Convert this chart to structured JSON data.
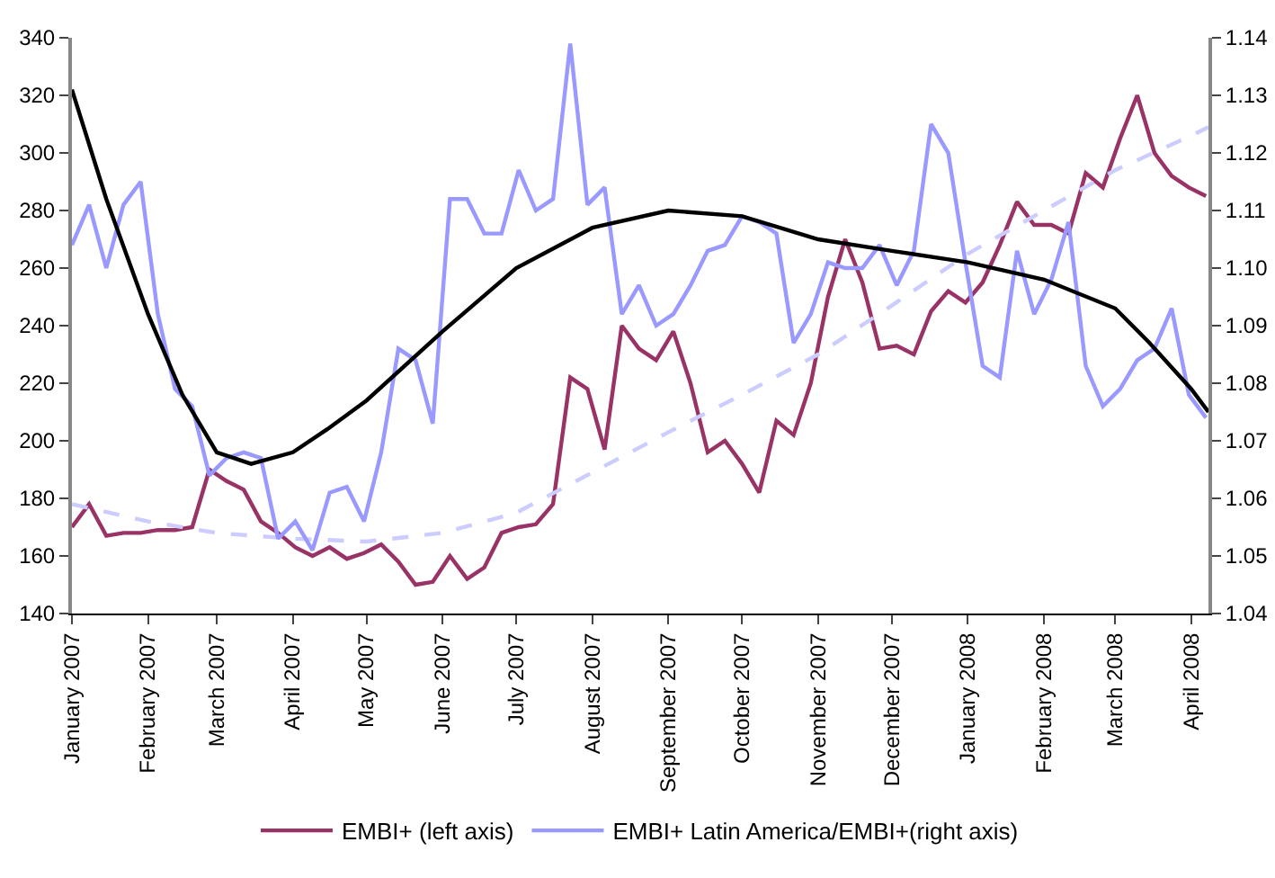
{
  "chart_data": {
    "type": "line",
    "x": [
      "2007-01-01",
      "2007-01-08",
      "2007-01-15",
      "2007-01-22",
      "2007-01-29",
      "2007-02-05",
      "2007-02-12",
      "2007-02-19",
      "2007-02-26",
      "2007-03-05",
      "2007-03-12",
      "2007-03-19",
      "2007-03-26",
      "2007-04-02",
      "2007-04-09",
      "2007-04-16",
      "2007-04-23",
      "2007-04-30",
      "2007-05-07",
      "2007-05-14",
      "2007-05-21",
      "2007-05-28",
      "2007-06-04",
      "2007-06-11",
      "2007-06-18",
      "2007-06-25",
      "2007-07-02",
      "2007-07-09",
      "2007-07-16",
      "2007-07-23",
      "2007-07-30",
      "2007-08-06",
      "2007-08-13",
      "2007-08-20",
      "2007-08-27",
      "2007-09-03",
      "2007-09-10",
      "2007-09-17",
      "2007-09-24",
      "2007-10-01",
      "2007-10-08",
      "2007-10-15",
      "2007-10-22",
      "2007-10-29",
      "2007-11-05",
      "2007-11-12",
      "2007-11-19",
      "2007-11-26",
      "2007-12-03",
      "2007-12-10",
      "2007-12-17",
      "2007-12-24",
      "2007-12-31",
      "2008-01-07",
      "2008-01-14",
      "2008-01-21",
      "2008-01-28",
      "2008-02-04",
      "2008-02-11",
      "2008-02-18",
      "2008-02-25",
      "2008-03-03",
      "2008-03-10",
      "2008-03-17",
      "2008-03-24",
      "2008-03-31",
      "2008-04-07"
    ],
    "series": [
      {
        "name": "EMBI+ (left axis)",
        "color": "#993366",
        "axis": "y",
        "values": [
          170,
          178,
          167,
          168,
          168,
          169,
          169,
          170,
          190,
          186,
          183,
          172,
          168,
          163,
          160,
          163,
          159,
          161,
          164,
          158,
          150,
          151,
          160,
          152,
          156,
          168,
          170,
          171,
          178,
          222,
          218,
          197,
          240,
          232,
          228,
          238,
          220,
          196,
          200,
          192,
          182,
          207,
          202,
          220,
          250,
          270,
          255,
          232,
          233,
          230,
          245,
          252,
          248,
          255,
          268,
          283,
          275,
          275,
          272,
          293,
          288,
          305,
          320,
          300,
          292,
          288,
          285
        ]
      },
      {
        "name": "EMBI+ Latin America/EMBI+(right axis)",
        "color": "#9999ff",
        "axis": "y2",
        "values": [
          1.104,
          1.111,
          1.1,
          1.111,
          1.115,
          1.092,
          1.079,
          1.076,
          1.064,
          1.067,
          1.068,
          1.067,
          1.053,
          1.056,
          1.051,
          1.061,
          1.062,
          1.056,
          1.068,
          1.086,
          1.084,
          1.073,
          1.112,
          1.112,
          1.106,
          1.106,
          1.117,
          1.11,
          1.112,
          1.139,
          1.111,
          1.114,
          1.092,
          1.097,
          1.09,
          1.092,
          1.097,
          1.103,
          1.104,
          1.109,
          1.108,
          1.106,
          1.087,
          1.092,
          1.101,
          1.1,
          1.1,
          1.104,
          1.097,
          1.103,
          1.125,
          1.12,
          1.101,
          1.083,
          1.081,
          1.103,
          1.092,
          1.098,
          1.108,
          1.083,
          1.076,
          1.079,
          1.084,
          1.086,
          1.093,
          1.078,
          1.074
        ]
      },
      {
        "type": "line",
        "color": "#000000",
        "axis": "y2",
        "x": [
          "2007-01-01",
          "2007-01-15",
          "2007-02-01",
          "2007-02-15",
          "2007-03-01",
          "2007-03-15",
          "2007-04-01",
          "2007-04-15",
          "2007-05-01",
          "2007-06-01",
          "2007-07-01",
          "2007-08-01",
          "2007-09-01",
          "2007-10-01",
          "2007-11-01",
          "2007-12-01",
          "2008-01-01",
          "2008-02-01",
          "2008-03-01",
          "2008-03-15",
          "2008-04-01",
          "2008-04-08"
        ],
        "values": [
          1.131,
          1.112,
          1.092,
          1.078,
          1.068,
          1.066,
          1.068,
          1.072,
          1.077,
          1.089,
          1.1,
          1.107,
          1.11,
          1.109,
          1.105,
          1.103,
          1.101,
          1.098,
          1.093,
          1.087,
          1.079,
          1.075
        ]
      },
      {
        "type": "line",
        "color": "#ccccff",
        "axis": "y",
        "line_style": "dashed",
        "x": [
          "2007-01-01",
          "2007-02-01",
          "2007-03-01",
          "2007-04-01",
          "2007-05-01",
          "2007-06-01",
          "2007-07-01",
          "2007-08-01",
          "2007-09-01",
          "2007-10-01",
          "2007-11-01",
          "2007-12-01",
          "2008-01-01",
          "2008-02-01",
          "2008-03-01",
          "2008-04-01",
          "2008-04-08"
        ],
        "values": [
          178,
          172,
          168,
          166,
          165,
          168,
          175,
          189,
          203,
          216,
          230,
          247,
          265,
          280,
          294,
          306,
          309
        ]
      }
    ],
    "xlim": [
      "2007-01-01",
      "2008-04-08"
    ],
    "xticks": [
      {
        "value": "2007-01-01",
        "label": "January 2007"
      },
      {
        "value": "2007-02-01",
        "label": "February 2007"
      },
      {
        "value": "2007-03-01",
        "label": "March 2007"
      },
      {
        "value": "2007-04-01",
        "label": "April 2007"
      },
      {
        "value": "2007-05-01",
        "label": "May 2007"
      },
      {
        "value": "2007-06-01",
        "label": "June 2007"
      },
      {
        "value": "2007-07-01",
        "label": "July 2007"
      },
      {
        "value": "2007-08-01",
        "label": "August 2007"
      },
      {
        "value": "2007-09-01",
        "label": "September 2007"
      },
      {
        "value": "2007-10-01",
        "label": "October 2007"
      },
      {
        "value": "2007-11-01",
        "label": "November 2007"
      },
      {
        "value": "2007-12-01",
        "label": "December 2007"
      },
      {
        "value": "2008-01-01",
        "label": "January 2008"
      },
      {
        "value": "2008-02-01",
        "label": "February 2008"
      },
      {
        "value": "2008-03-01",
        "label": "March 2008"
      },
      {
        "value": "2008-04-01",
        "label": "April 2008"
      }
    ],
    "ylim": [
      140,
      340
    ],
    "yticks": [
      140,
      160,
      180,
      200,
      220,
      240,
      260,
      280,
      300,
      320,
      340
    ],
    "y2lim": [
      1.04,
      1.14
    ],
    "y2ticks": [
      {
        "value": 1.04,
        "label": "1.04"
      },
      {
        "value": 1.05,
        "label": "1.05"
      },
      {
        "value": 1.06,
        "label": "1.06"
      },
      {
        "value": 1.07,
        "label": "1.07"
      },
      {
        "value": 1.08,
        "label": "1.08"
      },
      {
        "value": 1.09,
        "label": "1.09"
      },
      {
        "value": 1.1,
        "label": "1.10"
      },
      {
        "value": 1.11,
        "label": "1.11"
      },
      {
        "value": 1.12,
        "label": "1.12"
      },
      {
        "value": 1.13,
        "label": "1.13"
      },
      {
        "value": 1.14,
        "label": "1.14"
      }
    ],
    "grid": false,
    "legend": "bottom",
    "marker": "none",
    "line_style": "solid"
  }
}
